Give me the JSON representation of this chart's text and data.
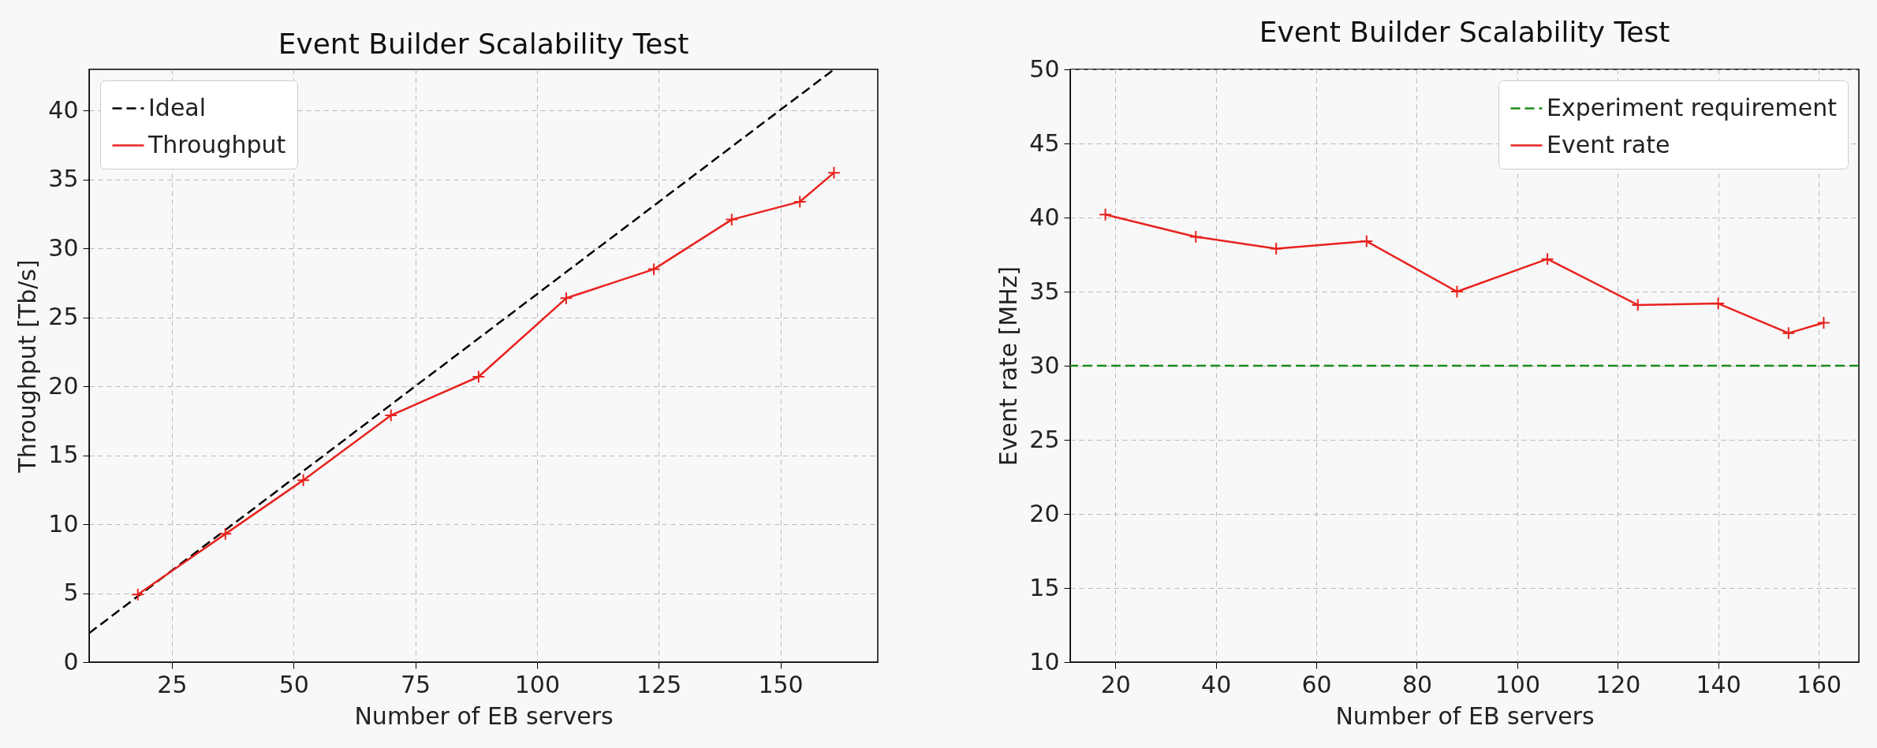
{
  "chart_data": [
    {
      "type": "line",
      "title": "Event Builder Scalability Test",
      "xlabel": "Number of EB servers",
      "ylabel": "Throughput [Tb/s]",
      "x": [
        18,
        36,
        52,
        70,
        88,
        106,
        124,
        140,
        154,
        161
      ],
      "xlim": [
        8,
        170
      ],
      "xticks": [
        25,
        50,
        75,
        100,
        125,
        150
      ],
      "ylim": [
        0,
        43
      ],
      "yticks": [
        0,
        5,
        10,
        15,
        20,
        25,
        30,
        35,
        40
      ],
      "grid": true,
      "legend": "top left",
      "series": [
        {
          "name": "Ideal",
          "color": "#000000",
          "x": [
            8,
            161
          ],
          "values": [
            2.1,
            43
          ],
          "line_style": "dashed",
          "marker": "none"
        },
        {
          "name": "Throughput",
          "color": "#e8221e",
          "values": [
            4.9,
            9.3,
            13.2,
            17.9,
            20.7,
            26.4,
            28.5,
            32.1,
            33.4,
            35.5
          ],
          "line_style": "solid",
          "marker": "cross"
        }
      ]
    },
    {
      "type": "line",
      "title": "Event Builder Scalability Test",
      "xlabel": "Number of EB servers",
      "ylabel": "Event rate [MHz]",
      "x": [
        18,
        36,
        52,
        70,
        88,
        106,
        124,
        140,
        154,
        161
      ],
      "xlim": [
        11,
        168
      ],
      "xticks": [
        20,
        40,
        60,
        80,
        100,
        120,
        140,
        160
      ],
      "ylim": [
        10,
        50
      ],
      "yticks": [
        10,
        15,
        20,
        25,
        30,
        35,
        40,
        45,
        50
      ],
      "grid": true,
      "legend": "top right",
      "ref_lines": [
        {
          "axis": "y",
          "value": 30,
          "label": "Experiment requirement",
          "color": "#1a8a1a",
          "line_style": "dashed"
        }
      ],
      "series": [
        {
          "name": "Event rate",
          "color": "#e8221e",
          "values": [
            40.2,
            38.7,
            37.9,
            38.4,
            35.0,
            37.2,
            34.1,
            34.2,
            32.2,
            32.9
          ],
          "line_style": "solid",
          "marker": "cross"
        }
      ]
    }
  ]
}
